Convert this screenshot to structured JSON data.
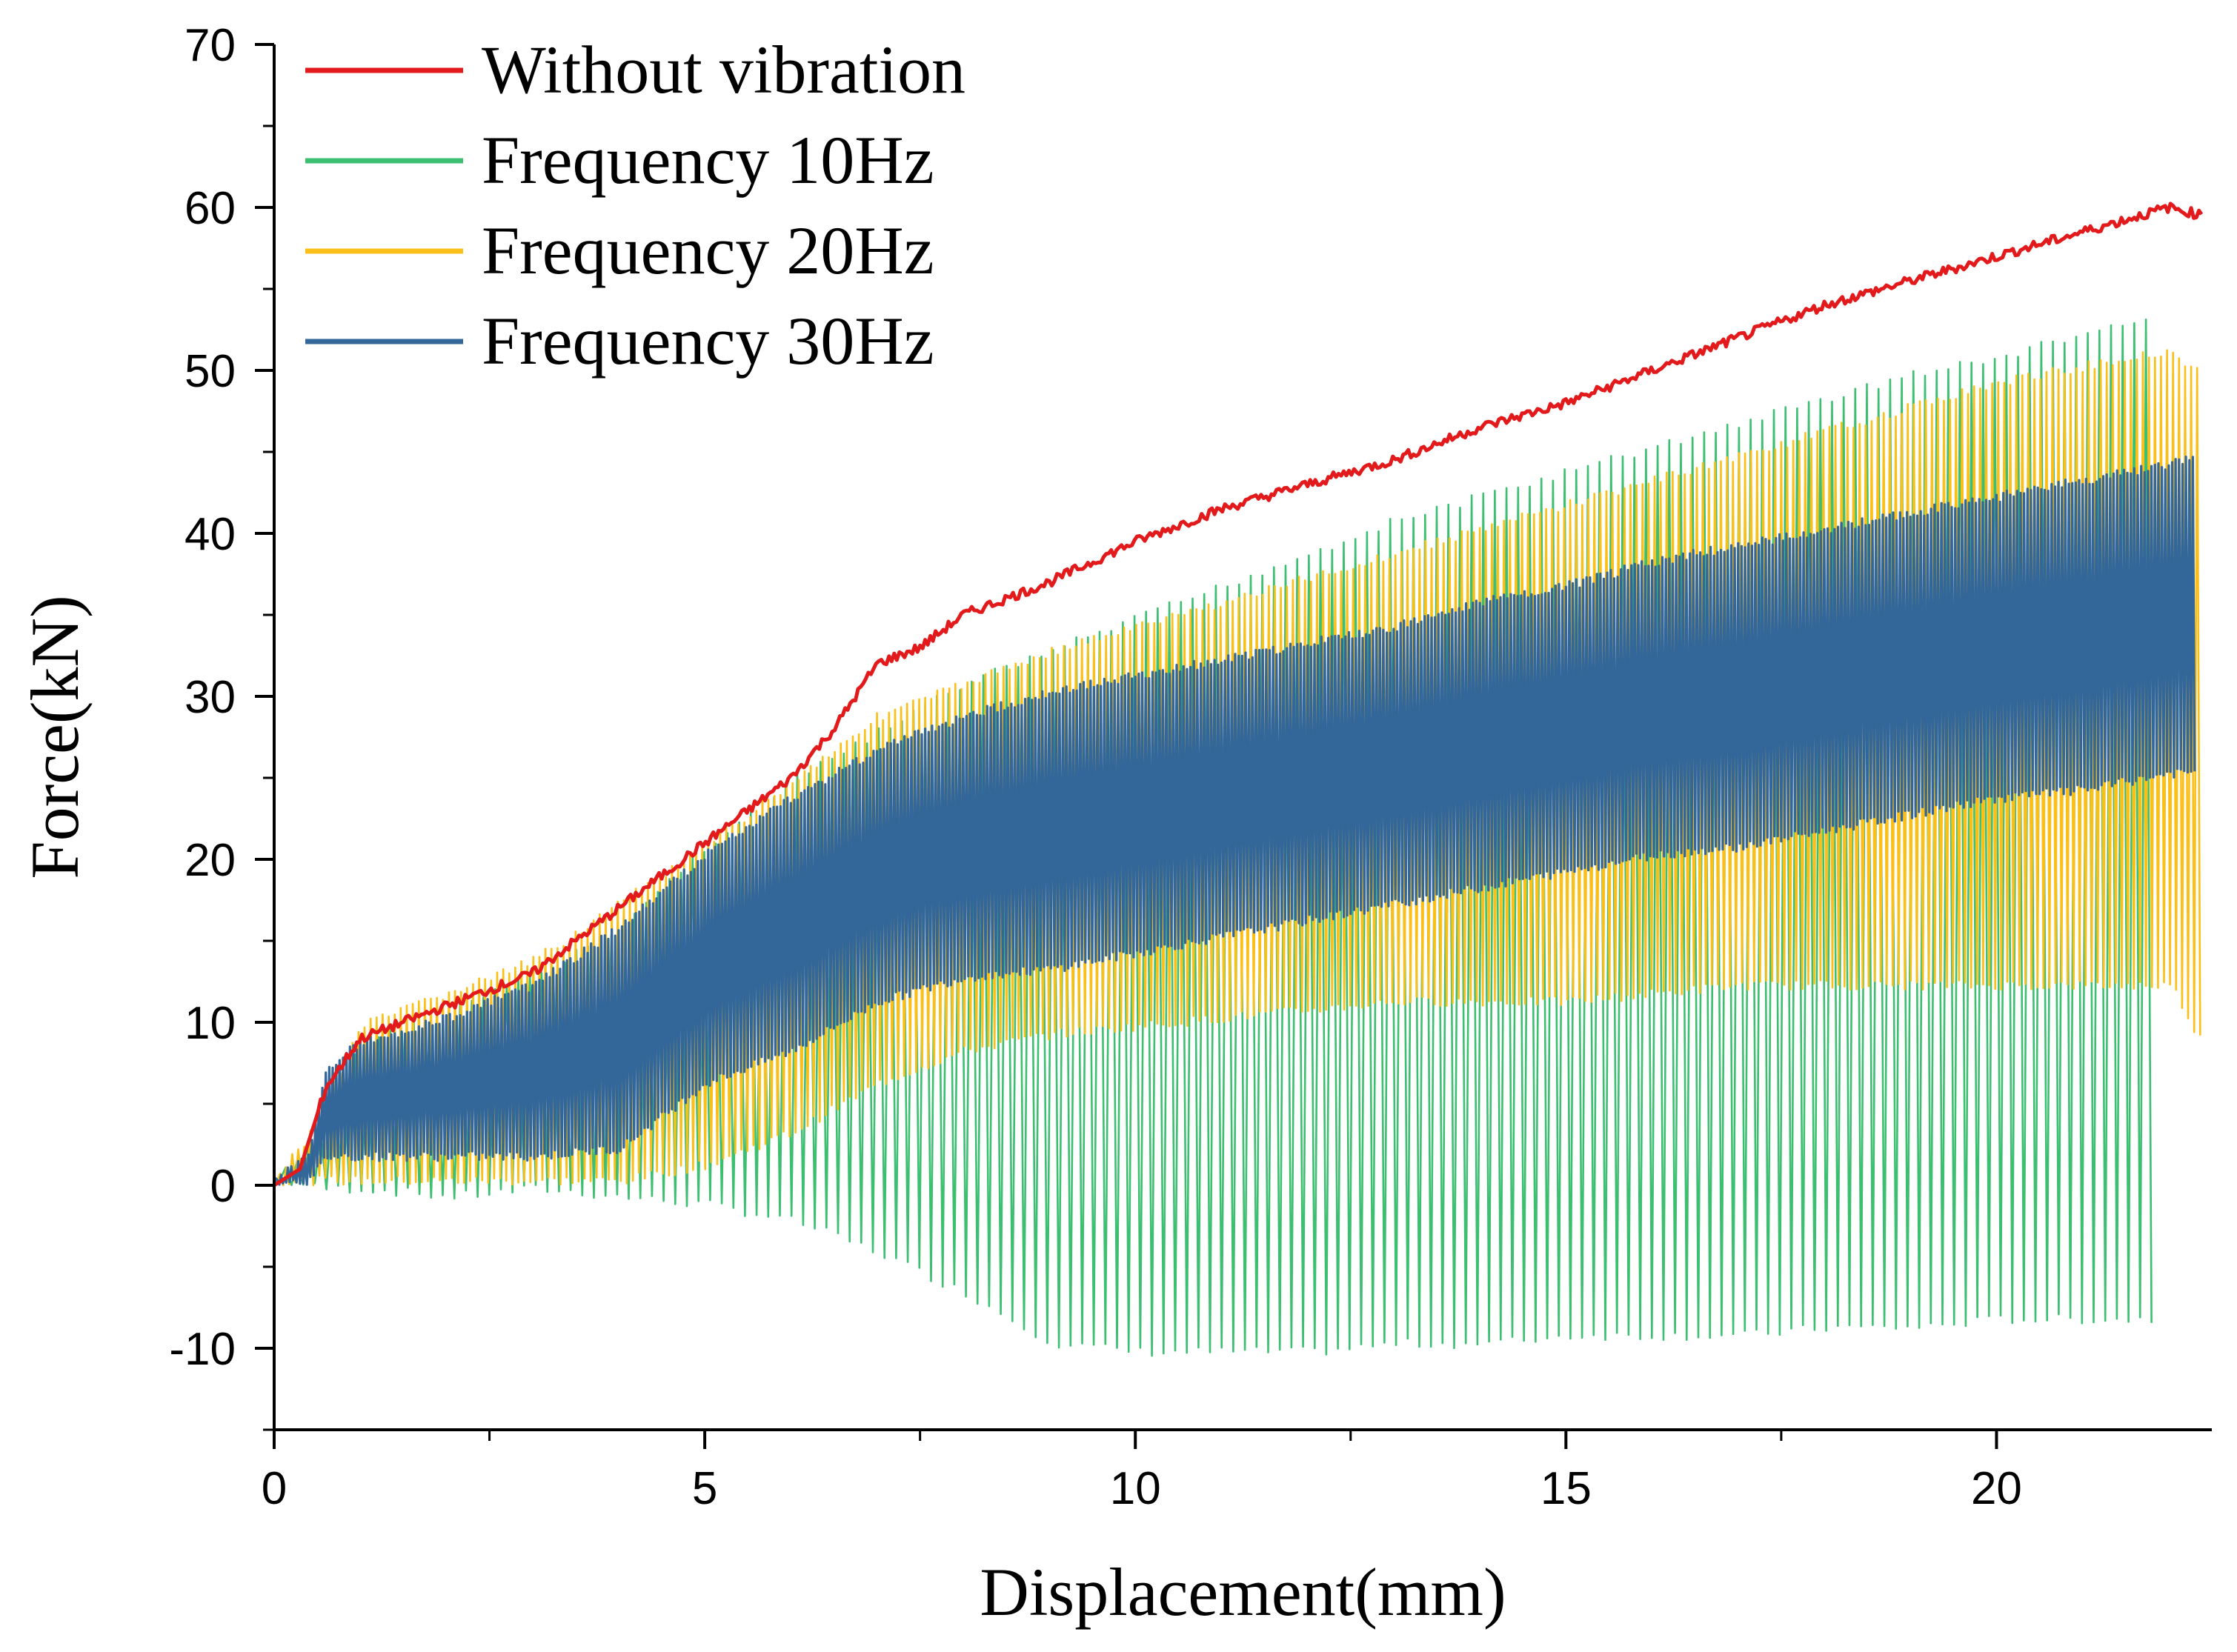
{
  "chart_data": {
    "type": "line",
    "xlabel": "Displacement(mm)",
    "ylabel": "Force(kN)",
    "xlim": [
      0,
      22.5
    ],
    "ylim": [
      -15,
      70
    ],
    "x_ticks": [
      0,
      5,
      10,
      15,
      20
    ],
    "x_tick_labels": [
      "0",
      "5",
      "10",
      "15",
      "20"
    ],
    "y_ticks": [
      -10,
      0,
      10,
      20,
      30,
      40,
      50,
      60,
      70
    ],
    "y_tick_labels": [
      "-10",
      "0",
      "10",
      "20",
      "30",
      "40",
      "50",
      "60",
      "70"
    ],
    "grid": false,
    "legend_position": "top-left",
    "series": [
      {
        "name": "Without vibration",
        "color": "#e31a1c",
        "style": "line",
        "x": [
          0,
          0.3,
          0.6,
          1,
          2,
          3,
          4,
          5,
          5.5,
          6,
          6.5,
          7,
          7.5,
          8,
          9,
          10,
          11,
          12,
          13,
          14,
          15,
          16,
          17,
          18,
          19,
          20,
          21,
          22,
          22.4
        ],
        "y": [
          0,
          1,
          6,
          9,
          11,
          13,
          17,
          21,
          23,
          25,
          28,
          32,
          33,
          35,
          37,
          39.5,
          41.5,
          43,
          44.5,
          46.5,
          48,
          50,
          52,
          54,
          55.5,
          57,
          58.5,
          60,
          59.5
        ]
      },
      {
        "name": "Frequency 10Hz",
        "color": "#3cbf70",
        "style": "band",
        "x": [
          0,
          0.5,
          1,
          2,
          3,
          4,
          5,
          6,
          7,
          8,
          9,
          10,
          11,
          12,
          13,
          14,
          15,
          16,
          17,
          18,
          19,
          20,
          21,
          21.8
        ],
        "upper": [
          0.5,
          3,
          9,
          11,
          13,
          16,
          21,
          25,
          28,
          31,
          33,
          35,
          37,
          39,
          41,
          42.5,
          44,
          45.5,
          47,
          48.5,
          50,
          51,
          52.5,
          53.5
        ],
        "lower": [
          0,
          -0.5,
          -0.5,
          -1,
          -0.5,
          -1,
          -1.5,
          -2.5,
          -4.5,
          -7,
          -10,
          -10.5,
          -10.5,
          -10.5,
          -10,
          -10,
          -9.5,
          -9.5,
          -9.5,
          -9,
          -9,
          -8.5,
          -8.5,
          -8.5
        ]
      },
      {
        "name": "Frequency 20Hz",
        "color": "#fbbf1a",
        "style": "band",
        "x": [
          0,
          0.5,
          1,
          2,
          3,
          4,
          5,
          6,
          7,
          8,
          9,
          10,
          11,
          12,
          13,
          14,
          15,
          16,
          17,
          18,
          19,
          20,
          21,
          22,
          22.4
        ],
        "upper": [
          0.5,
          4,
          10,
          12,
          14,
          17.5,
          21,
          25,
          29,
          31,
          33,
          34.5,
          36,
          37.5,
          39,
          40.5,
          42,
          43.5,
          45,
          46.5,
          48,
          49.5,
          50.5,
          51.5,
          50
        ],
        "lower": [
          0,
          0,
          0,
          0,
          0,
          0,
          1,
          3,
          6,
          8,
          9,
          9.5,
          10,
          10.5,
          11,
          11,
          11,
          11.5,
          12,
          12,
          12,
          12,
          12,
          12,
          8
        ]
      },
      {
        "name": "Frequency 30Hz",
        "color": "#336699",
        "style": "band",
        "x": [
          0,
          0.4,
          0.6,
          1,
          2,
          3,
          4,
          5,
          6,
          7,
          8,
          9,
          10,
          11,
          12,
          13,
          14,
          15,
          16,
          17,
          18,
          19,
          20,
          21,
          22,
          22.3
        ],
        "upper": [
          0.5,
          2,
          7.5,
          9,
          10.5,
          12.5,
          16,
          20.5,
          24,
          27,
          29,
          30.5,
          31.5,
          32.5,
          33.5,
          34.5,
          36,
          37,
          38.5,
          39.5,
          40.5,
          41.5,
          42.5,
          43.5,
          44.5,
          45
        ],
        "lower": [
          0,
          0,
          1.5,
          1.5,
          1.5,
          1.5,
          2,
          6,
          8,
          11,
          12.5,
          13,
          14,
          15,
          16,
          17,
          18,
          19,
          20,
          20.5,
          21.5,
          22.5,
          23.5,
          24,
          25,
          25
        ]
      }
    ]
  }
}
